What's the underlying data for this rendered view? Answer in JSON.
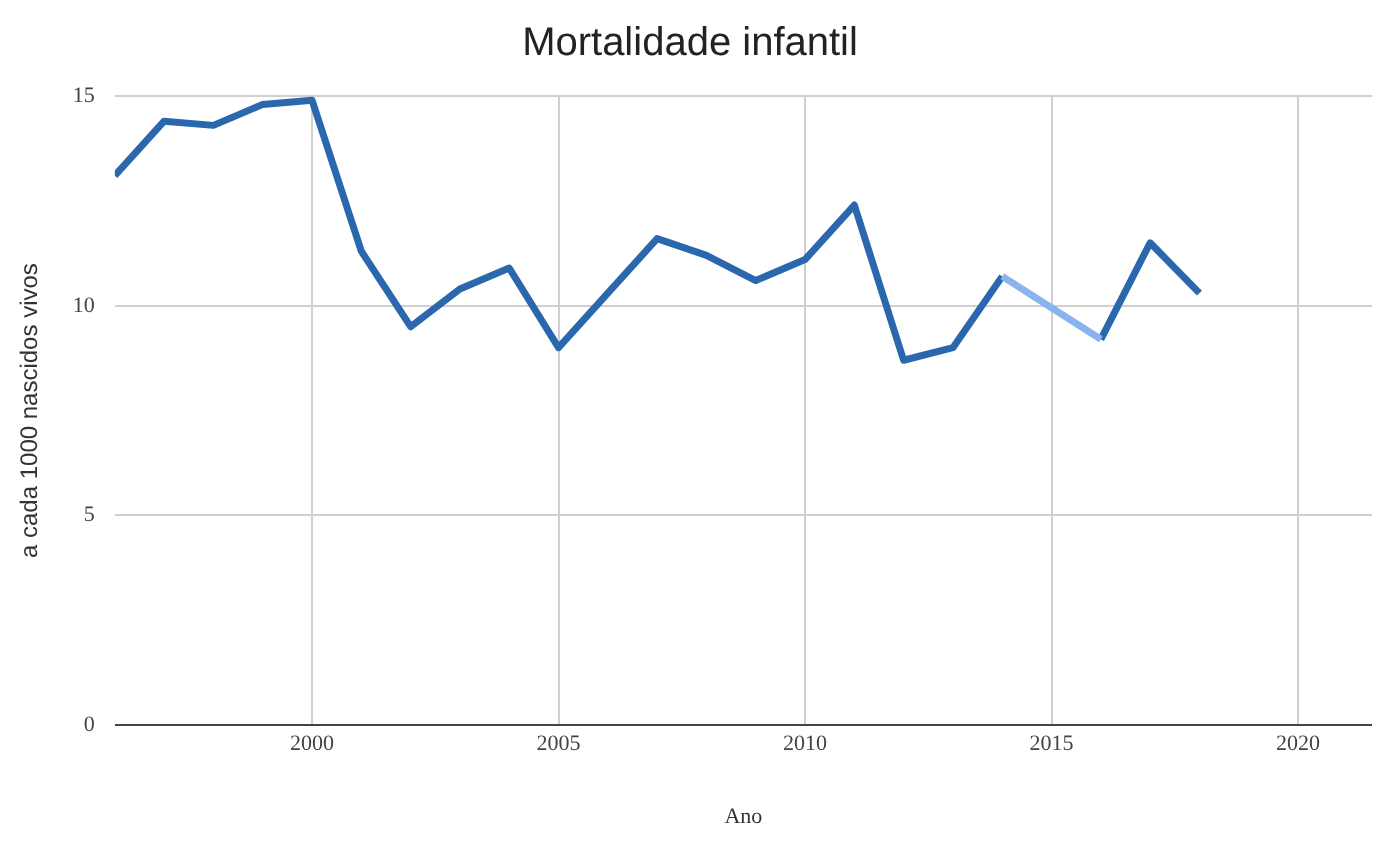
{
  "chart_data": {
    "type": "line",
    "title": "Mortalidade infantil",
    "xlabel": "Ano",
    "ylabel": "a cada 1000 nascidos vivos",
    "x": [
      1996,
      1997,
      1998,
      1999,
      2000,
      2001,
      2002,
      2003,
      2004,
      2005,
      2006,
      2007,
      2008,
      2009,
      2010,
      2011,
      2012,
      2013,
      2014,
      2015,
      2016,
      2017,
      2018
    ],
    "series": [
      {
        "color": "#8ab4f0",
        "x": [
          2014,
          2016
        ],
        "values": [
          10.7,
          9.2
        ]
      },
      {
        "color": "#2a67ad",
        "values": [
          13.1,
          14.4,
          14.3,
          14.8,
          14.9,
          11.3,
          9.5,
          10.4,
          10.9,
          9.0,
          10.3,
          11.6,
          11.2,
          10.6,
          11.1,
          12.4,
          8.7,
          9.0,
          10.7,
          null,
          9.2,
          11.5,
          10.3
        ]
      }
    ],
    "xlim": [
      1996,
      2021.5
    ],
    "ylim": [
      0,
      15
    ],
    "xticks": [
      2000,
      2005,
      2010,
      2015,
      2020
    ],
    "yticks": [
      0,
      5,
      10,
      15
    ],
    "grid": true
  }
}
